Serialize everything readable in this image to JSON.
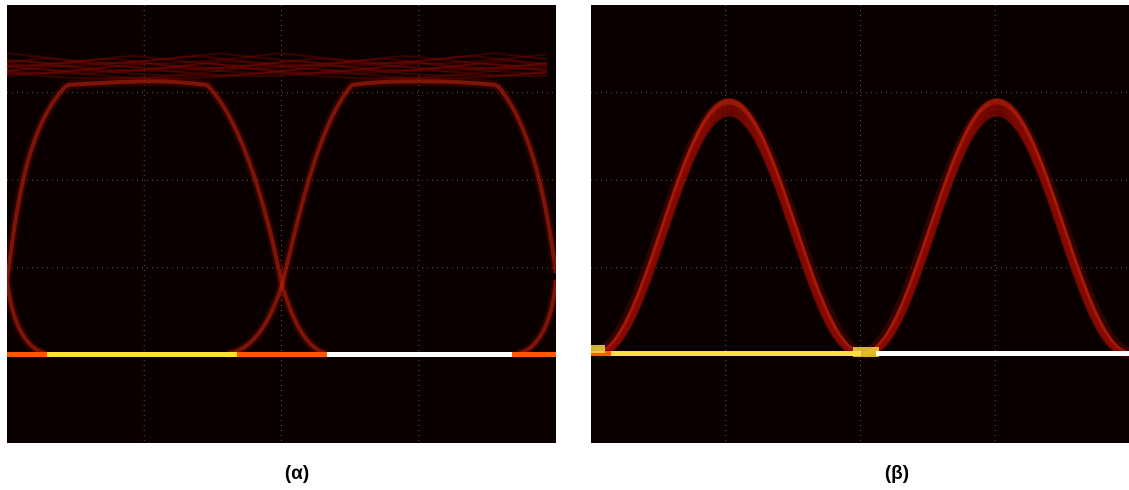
{
  "figure": {
    "panels": [
      {
        "id": "a",
        "caption": "(α)",
        "trace": "eye-diagram-rectangular"
      },
      {
        "id": "b",
        "caption": "(β)",
        "trace": "eye-diagram-raised"
      }
    ],
    "colors": {
      "background": "#0a0000",
      "grid": "#5a5a4a",
      "trace_dim": "#8a0a00",
      "trace_mid": "#d42a10",
      "baseline_hot": "#ffe040",
      "baseline_white": "#ffffff",
      "baseline_orange": "#ff5a00"
    }
  }
}
